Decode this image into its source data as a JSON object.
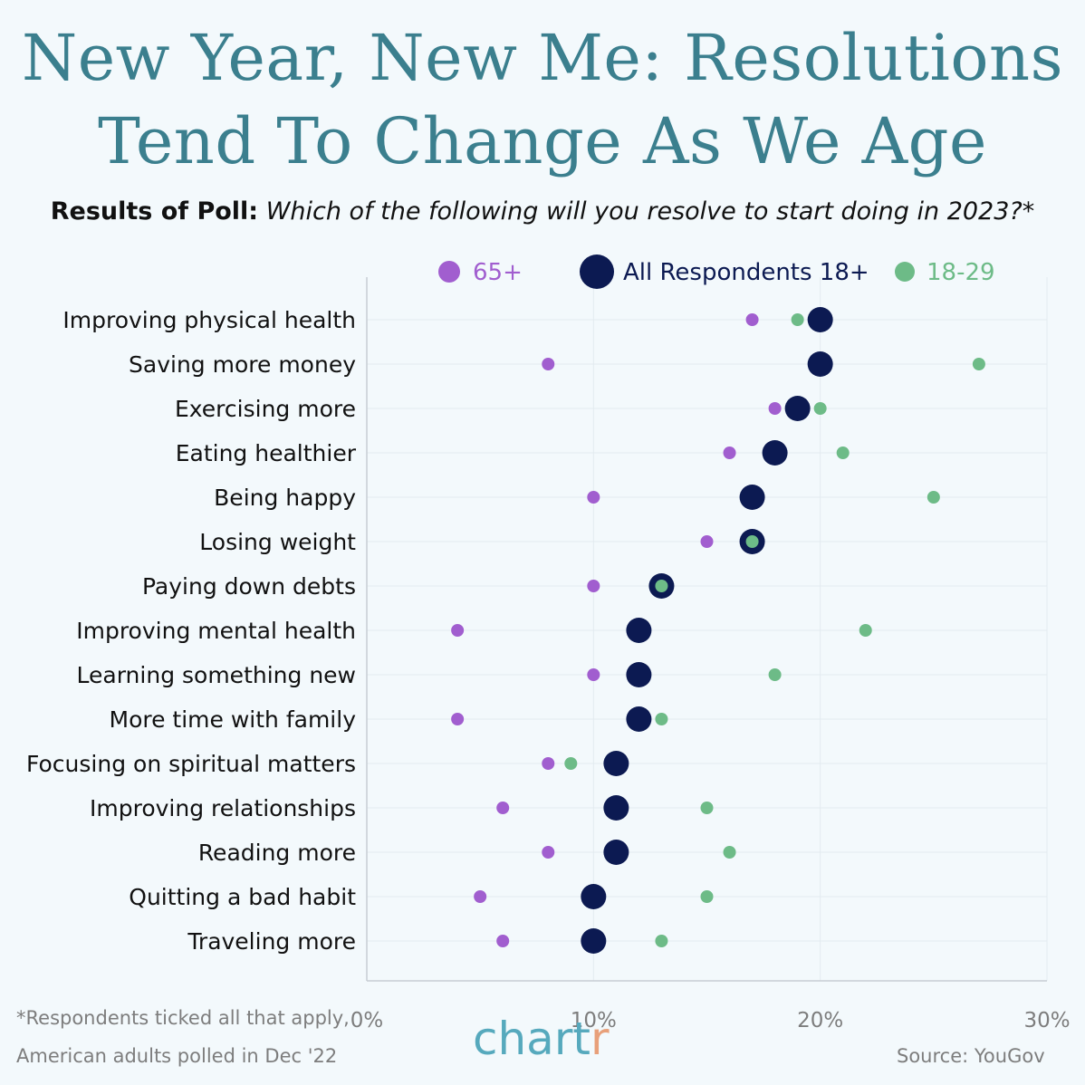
{
  "title_line1": "New Year, New Me: Resolutions",
  "title_line2": "Tend To Change As We Age",
  "subtitle_lead": "Results of Poll:",
  "subtitle_question": "Which of the following will you resolve to start doing in 2023?*",
  "footnote_line1": "*Respondents ticked all that apply,",
  "footnote_line2": "American adults polled in Dec '22",
  "source": "Source: YouGov",
  "logo_main": "chart",
  "logo_accent": "r",
  "colors": {
    "older": "#a15ecf",
    "all": "#0c1a52",
    "young": "#6dbb87",
    "background": "#f3f9fc"
  },
  "chart_data": {
    "type": "scatter",
    "xlim": [
      0,
      30
    ],
    "x_ticks": [
      "0%",
      "10%",
      "20%",
      "30%"
    ],
    "x_tick_values": [
      0,
      10,
      20,
      30
    ],
    "grid": true,
    "legend": "top",
    "categories": [
      "Improving physical health",
      "Saving more money",
      "Exercising more",
      "Eating healthier",
      "Being happy",
      "Losing weight",
      "Paying down debts",
      "Improving mental health",
      "Learning something new",
      "More time with family",
      "Focusing on spiritual matters",
      "Improving relationships",
      "Reading more",
      "Quitting a bad habit",
      "Traveling more"
    ],
    "series": [
      {
        "name": "65+",
        "key": "older",
        "values": [
          17,
          8,
          18,
          16,
          10,
          15,
          10,
          4,
          10,
          4,
          8,
          6,
          8,
          5,
          6
        ]
      },
      {
        "name": "All Respondents 18+",
        "key": "all",
        "values": [
          20,
          20,
          19,
          18,
          17,
          17,
          13,
          12,
          12,
          12,
          11,
          11,
          11,
          10,
          10
        ]
      },
      {
        "name": "18-29",
        "key": "young",
        "values": [
          19,
          27,
          20,
          21,
          25,
          17,
          13,
          22,
          18,
          13,
          9,
          15,
          16,
          15,
          13
        ]
      }
    ]
  }
}
